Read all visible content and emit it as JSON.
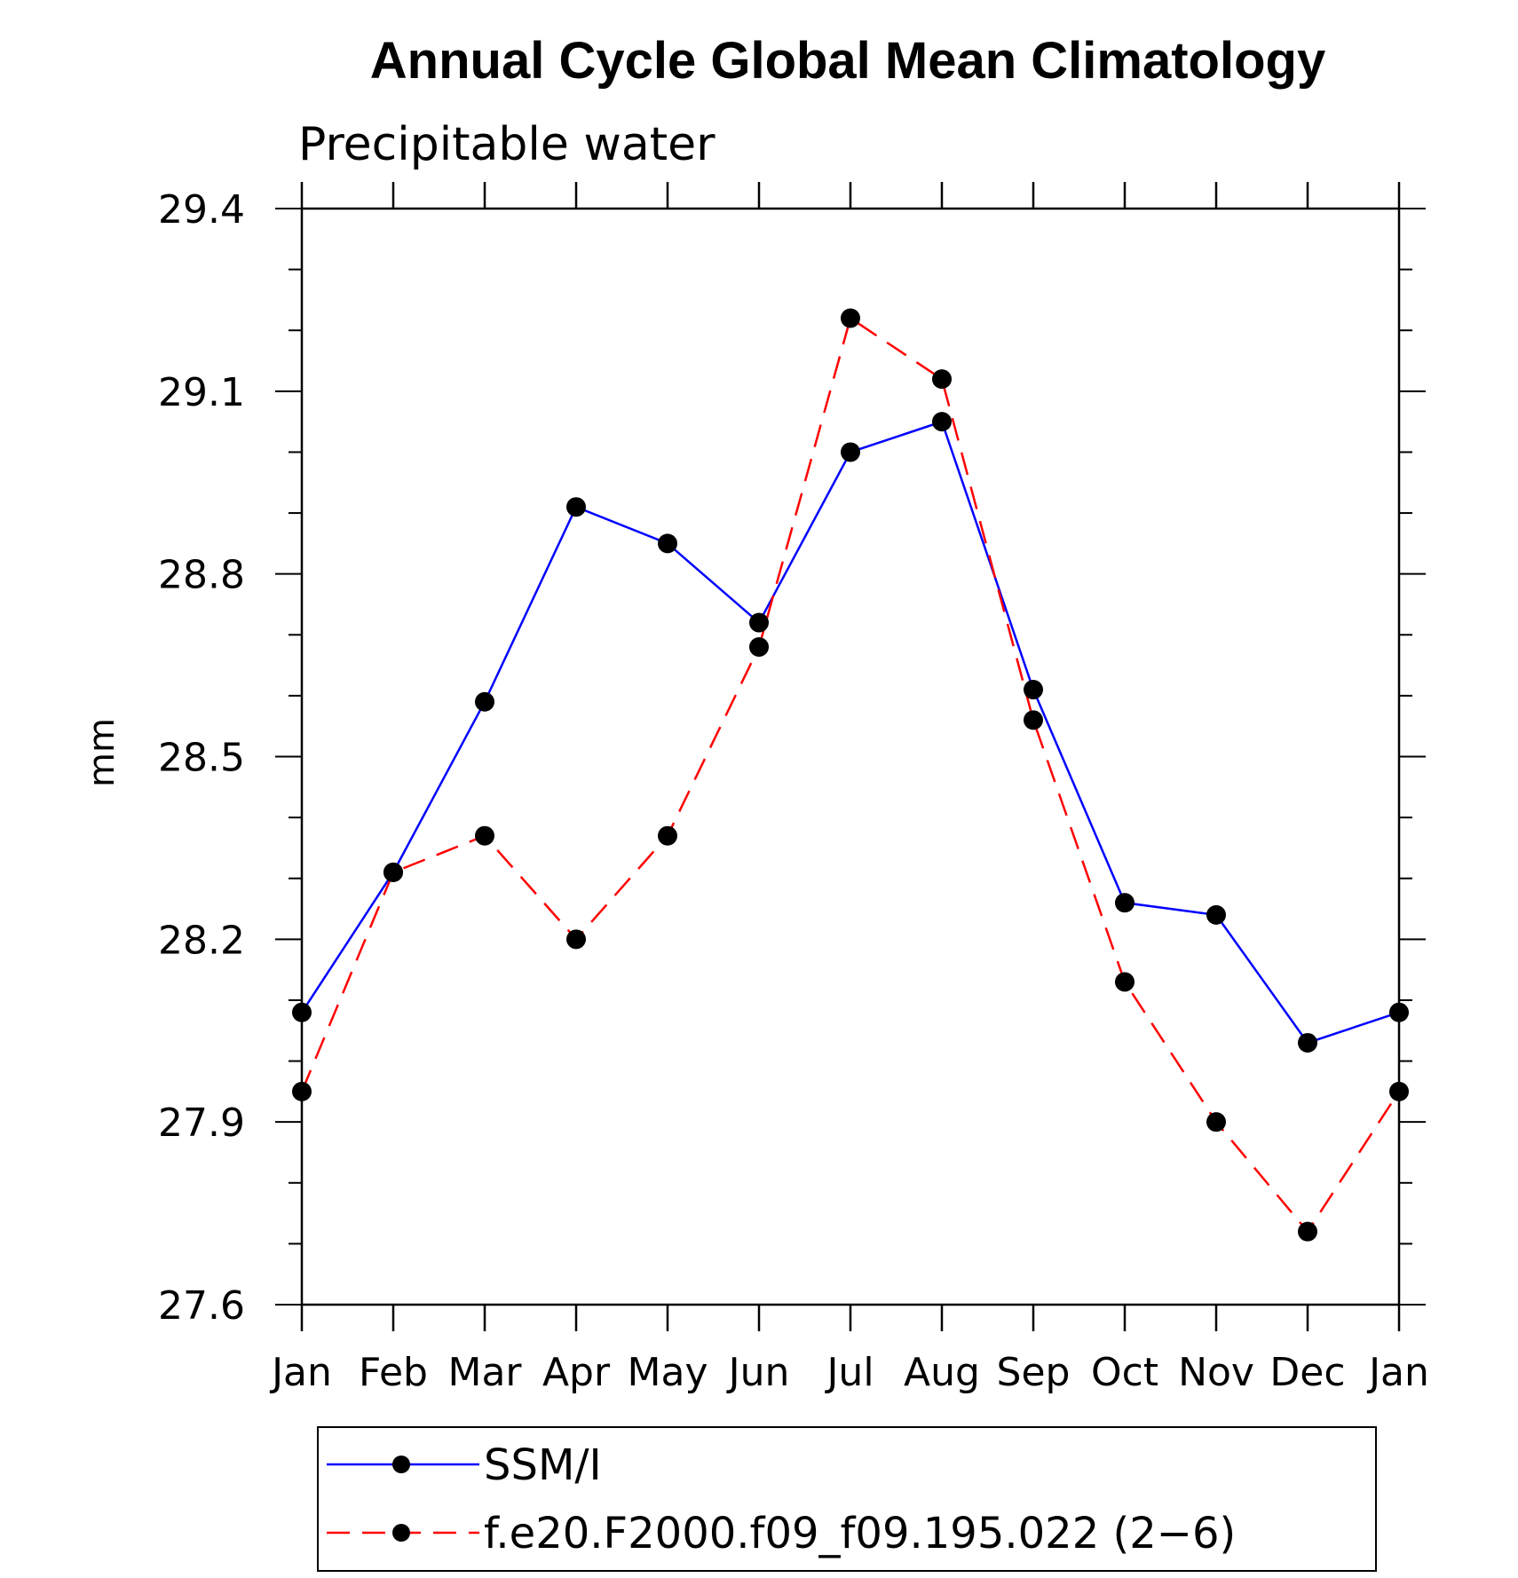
{
  "title": "Annual Cycle Global Mean Climatology",
  "subtitle": "Precipitable water",
  "chart_data": {
    "type": "line",
    "categories": [
      "Jan",
      "Feb",
      "Mar",
      "Apr",
      "May",
      "Jun",
      "Jul",
      "Aug",
      "Sep",
      "Oct",
      "Nov",
      "Dec",
      "Jan"
    ],
    "ylabel": "mm",
    "ylim": [
      27.6,
      29.4
    ],
    "yticks": [
      "27.6",
      "27.9",
      "28.2",
      "28.5",
      "28.8",
      "29.1",
      "29.4"
    ],
    "ytick_values": [
      27.6,
      27.9,
      28.2,
      28.5,
      28.8,
      29.1,
      29.4
    ],
    "grid": false,
    "legend": "bottom",
    "series": [
      {
        "name": "SSM/I",
        "color": "#0000ff",
        "style": "solid",
        "values": [
          28.08,
          28.31,
          28.59,
          28.91,
          28.85,
          28.72,
          29.0,
          29.05,
          28.61,
          28.26,
          28.24,
          28.03,
          28.08
        ]
      },
      {
        "name": "f.e20.F2000.f09_f09.195.022 (2−6)",
        "color": "#ff0000",
        "style": "dashed",
        "values": [
          27.95,
          28.31,
          28.37,
          28.2,
          28.37,
          28.68,
          29.22,
          29.12,
          28.56,
          28.13,
          27.9,
          27.72,
          27.95
        ]
      }
    ]
  }
}
